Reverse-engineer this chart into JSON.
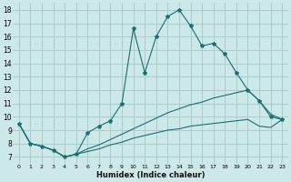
{
  "xlabel": "Humidex (Indice chaleur)",
  "background_color": "#cce8e8",
  "grid_color": "#aacccc",
  "line_color": "#1a6e6e",
  "xlim": [
    -0.5,
    23.5
  ],
  "ylim": [
    6.5,
    18.5
  ],
  "xtick_labels": [
    "0",
    "1",
    "2",
    "3",
    "4",
    "5",
    "6",
    "7",
    "8",
    "9",
    "10",
    "11",
    "12",
    "13",
    "14",
    "15",
    "16",
    "17",
    "18",
    "19",
    "20",
    "21",
    "22",
    "23"
  ],
  "ytick_labels": [
    "7",
    "8",
    "9",
    "10",
    "11",
    "12",
    "13",
    "14",
    "15",
    "16",
    "17",
    "18"
  ],
  "line1_x": [
    0,
    1,
    2,
    3,
    4,
    5,
    6,
    7,
    8,
    9,
    10,
    11,
    12,
    13,
    14,
    15,
    16,
    17,
    18,
    19,
    20,
    21,
    22,
    23
  ],
  "line1_y": [
    9.5,
    8.0,
    7.8,
    7.5,
    7.0,
    7.2,
    8.8,
    9.3,
    9.7,
    11.0,
    16.6,
    13.3,
    16.0,
    17.5,
    18.0,
    16.8,
    15.3,
    15.5,
    14.7,
    13.3,
    12.0,
    11.2,
    10.0,
    9.8
  ],
  "line1_markers_x": [
    0,
    1,
    2,
    3,
    4,
    5,
    6,
    7,
    8,
    9,
    10,
    11,
    12,
    13,
    14,
    15,
    16,
    17,
    18,
    19,
    20,
    21,
    22,
    23
  ],
  "line1_markers_y": [
    9.5,
    8.0,
    7.8,
    7.5,
    7.0,
    7.2,
    8.8,
    9.3,
    9.7,
    11.0,
    16.6,
    13.3,
    16.0,
    17.5,
    18.0,
    16.8,
    15.3,
    15.5,
    14.7,
    13.3,
    12.0,
    11.2,
    10.0,
    9.8
  ],
  "line2_x": [
    0,
    1,
    2,
    3,
    4,
    5,
    6,
    7,
    8,
    9,
    10,
    11,
    12,
    13,
    14,
    15,
    16,
    17,
    18,
    19,
    20,
    21,
    22,
    23
  ],
  "line2_y": [
    9.5,
    8.0,
    7.8,
    7.5,
    7.0,
    7.2,
    7.6,
    7.9,
    8.3,
    8.7,
    9.1,
    9.5,
    9.9,
    10.3,
    10.6,
    10.9,
    11.1,
    11.4,
    11.6,
    11.8,
    12.0,
    11.2,
    10.2,
    9.8
  ],
  "line3_x": [
    0,
    1,
    2,
    3,
    4,
    5,
    6,
    7,
    8,
    9,
    10,
    11,
    12,
    13,
    14,
    15,
    16,
    17,
    18,
    19,
    20,
    21,
    22,
    23
  ],
  "line3_y": [
    9.5,
    8.0,
    7.8,
    7.5,
    7.0,
    7.2,
    7.4,
    7.6,
    7.9,
    8.1,
    8.4,
    8.6,
    8.8,
    9.0,
    9.1,
    9.3,
    9.4,
    9.5,
    9.6,
    9.7,
    9.8,
    9.3,
    9.2,
    9.8
  ]
}
